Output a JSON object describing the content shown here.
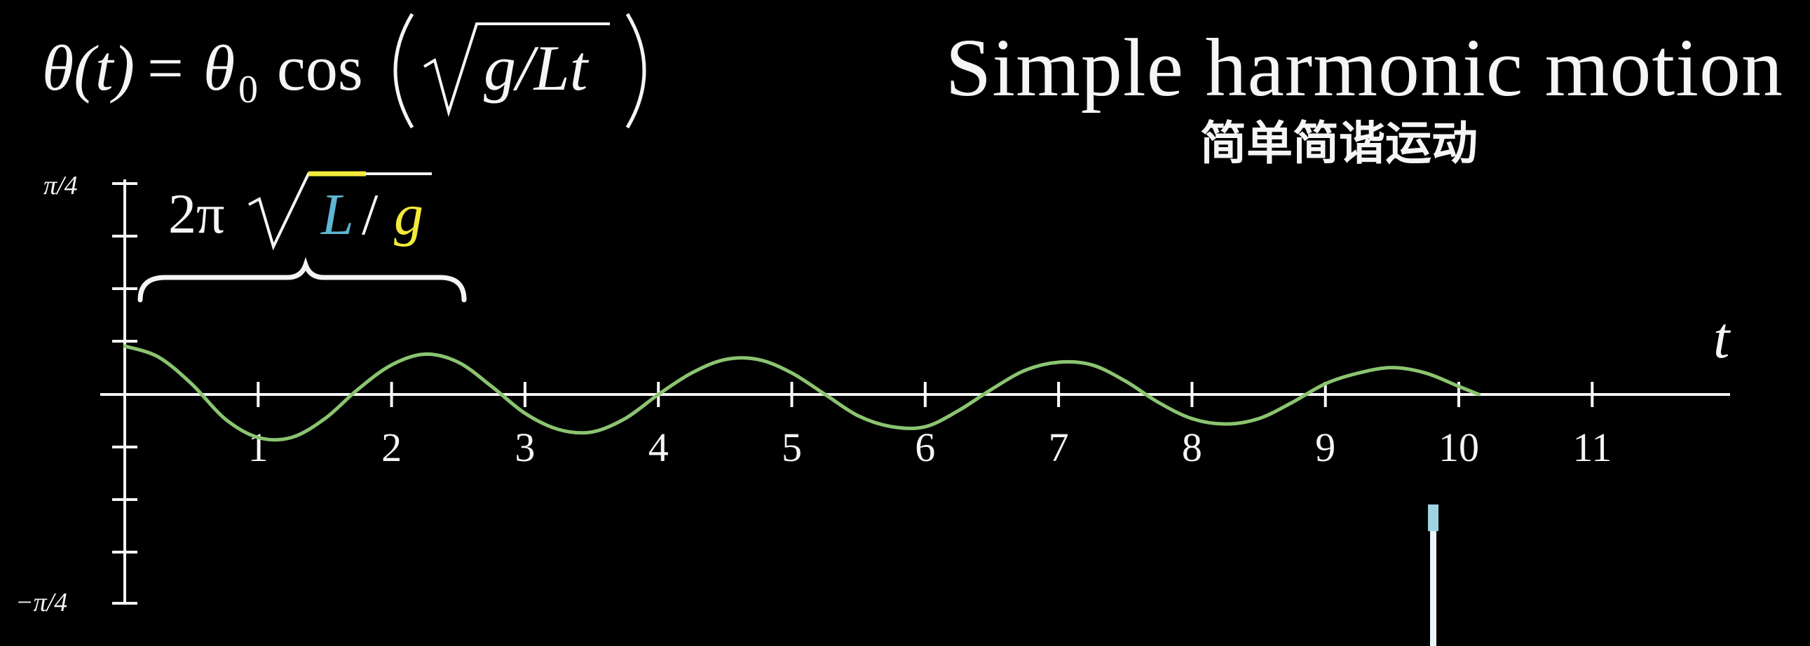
{
  "title": "Simple harmonic motion",
  "subtitle": "简单简谐运动",
  "formula": {
    "lhs": "θ(t)",
    "equals": "=",
    "theta": "θ",
    "theta_sub": "0",
    "func": "cos",
    "radicand": "g/Lt"
  },
  "period_label": {
    "coef": "2π",
    "L": "L",
    "slash": "/",
    "g": "g"
  },
  "colors": {
    "background": "#000000",
    "curve": "#8bc470",
    "axis": "#ffffff",
    "L_color": "#5fb6d2",
    "g_color": "#f4ea3c"
  },
  "chart_data": {
    "type": "line",
    "title": "",
    "xlabel": "t",
    "ylabel": "",
    "x_ticks": [
      "1",
      "2",
      "3",
      "4",
      "5",
      "6",
      "7",
      "8",
      "9",
      "10",
      "11"
    ],
    "y_tick_labels": {
      "top": "π/4",
      "bottom": "−π/4"
    },
    "xlim": [
      -0.1,
      11.7
    ],
    "ylim": [
      -0.785,
      0.785
    ],
    "grid": false,
    "series": [
      {
        "x": [
          0,
          0.25,
          0.5,
          0.75,
          1.0,
          1.25,
          1.5,
          1.75,
          2.0,
          2.25,
          2.5,
          2.75,
          3.0,
          3.25,
          3.5,
          3.75,
          4.0,
          4.25,
          4.5,
          4.75,
          5.0,
          5.25,
          5.5,
          5.75,
          6.0,
          6.25,
          6.5,
          6.75,
          7.0,
          7.25,
          7.5,
          7.75,
          8.0,
          8.25,
          8.5,
          8.75,
          9.0,
          9.25,
          9.5,
          9.75,
          10.0,
          10.15
        ],
        "values": [
          0.18,
          0.14,
          0.04,
          -0.09,
          -0.16,
          -0.16,
          -0.09,
          0.02,
          0.11,
          0.15,
          0.12,
          0.03,
          -0.07,
          -0.13,
          -0.14,
          -0.09,
          0.0,
          0.08,
          0.13,
          0.13,
          0.08,
          0.0,
          -0.08,
          -0.12,
          -0.12,
          -0.06,
          0.02,
          0.09,
          0.12,
          0.11,
          0.05,
          -0.03,
          -0.09,
          -0.11,
          -0.09,
          -0.03,
          0.04,
          0.08,
          0.1,
          0.08,
          0.03,
          0.0
        ]
      }
    ]
  }
}
